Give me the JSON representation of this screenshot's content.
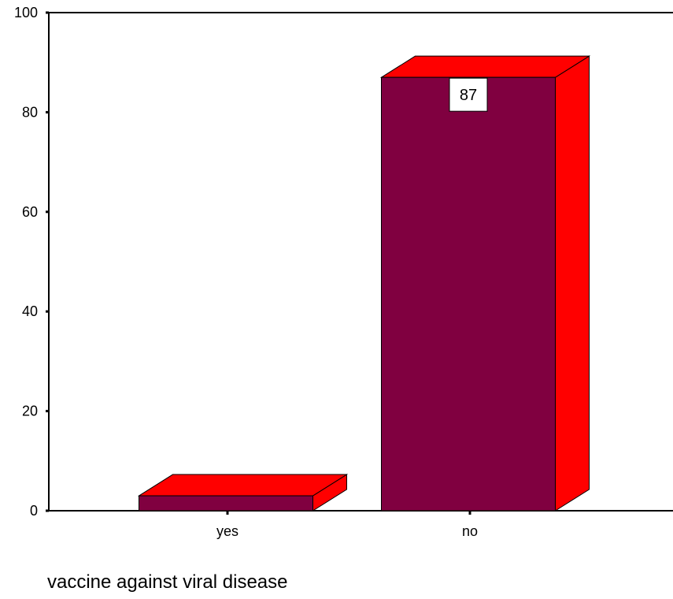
{
  "chart_data": {
    "type": "bar",
    "style": "3d",
    "categories": [
      "yes",
      "no"
    ],
    "values": [
      3,
      87
    ],
    "data_labels": [
      "",
      "87"
    ],
    "xlabel": "vaccine against viral disease",
    "ylabel": "",
    "ylim": [
      0,
      100
    ],
    "yticks": [
      "0",
      "20",
      "40",
      "60",
      "80",
      "100"
    ],
    "grid": false,
    "legend": "none",
    "colors": {
      "front": "#800040",
      "side": "#ff0000",
      "top": "#ff0000",
      "outline": "#000000",
      "label_box": "#ffffff"
    }
  }
}
